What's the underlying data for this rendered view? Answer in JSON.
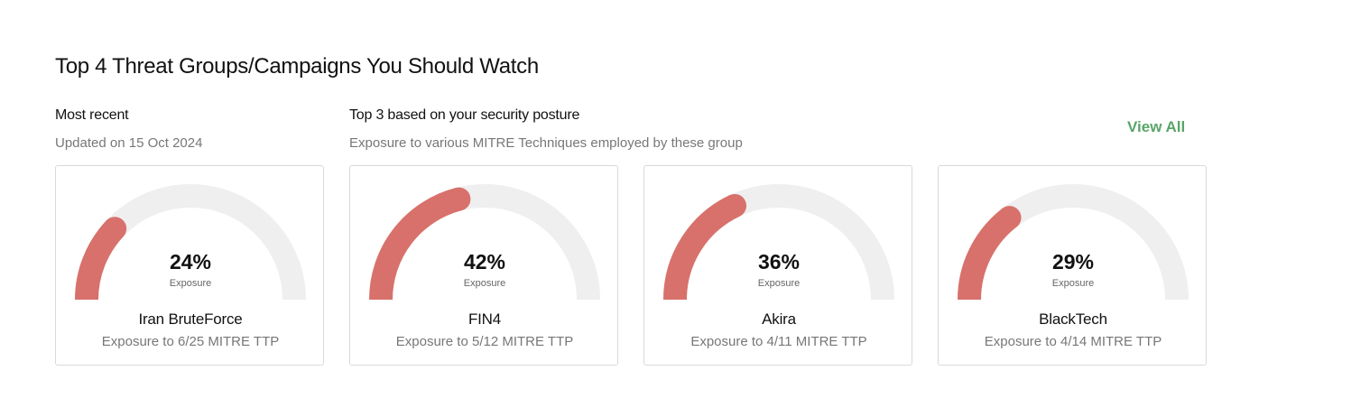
{
  "header": {
    "title": "Top 4 Threat Groups/Campaigns You Should Watch"
  },
  "recent": {
    "title": "Most recent",
    "subtitle": "Updated on 15 Oct 2024"
  },
  "top3": {
    "title": "Top 3 based on your security posture",
    "subtitle": "Exposure to various MITRE Techniques employed by these group",
    "view_all_label": "View All"
  },
  "colors": {
    "gauge_fill": "#d8716b",
    "gauge_track": "#efefef",
    "accent_green": "#5aa569"
  },
  "cards": [
    {
      "percent": 24,
      "percent_label": "24%",
      "exposure_label": "Exposure",
      "name": "Iran BruteForce",
      "detail": "Exposure to 6/25 MITRE TTP"
    },
    {
      "percent": 42,
      "percent_label": "42%",
      "exposure_label": "Exposure",
      "name": "FIN4",
      "detail": "Exposure to 5/12 MITRE TTP"
    },
    {
      "percent": 36,
      "percent_label": "36%",
      "exposure_label": "Exposure",
      "name": "Akira",
      "detail": "Exposure to 4/11 MITRE TTP"
    },
    {
      "percent": 29,
      "percent_label": "29%",
      "exposure_label": "Exposure",
      "name": "BlackTech",
      "detail": "Exposure to 4/14 MITRE TTP"
    }
  ]
}
